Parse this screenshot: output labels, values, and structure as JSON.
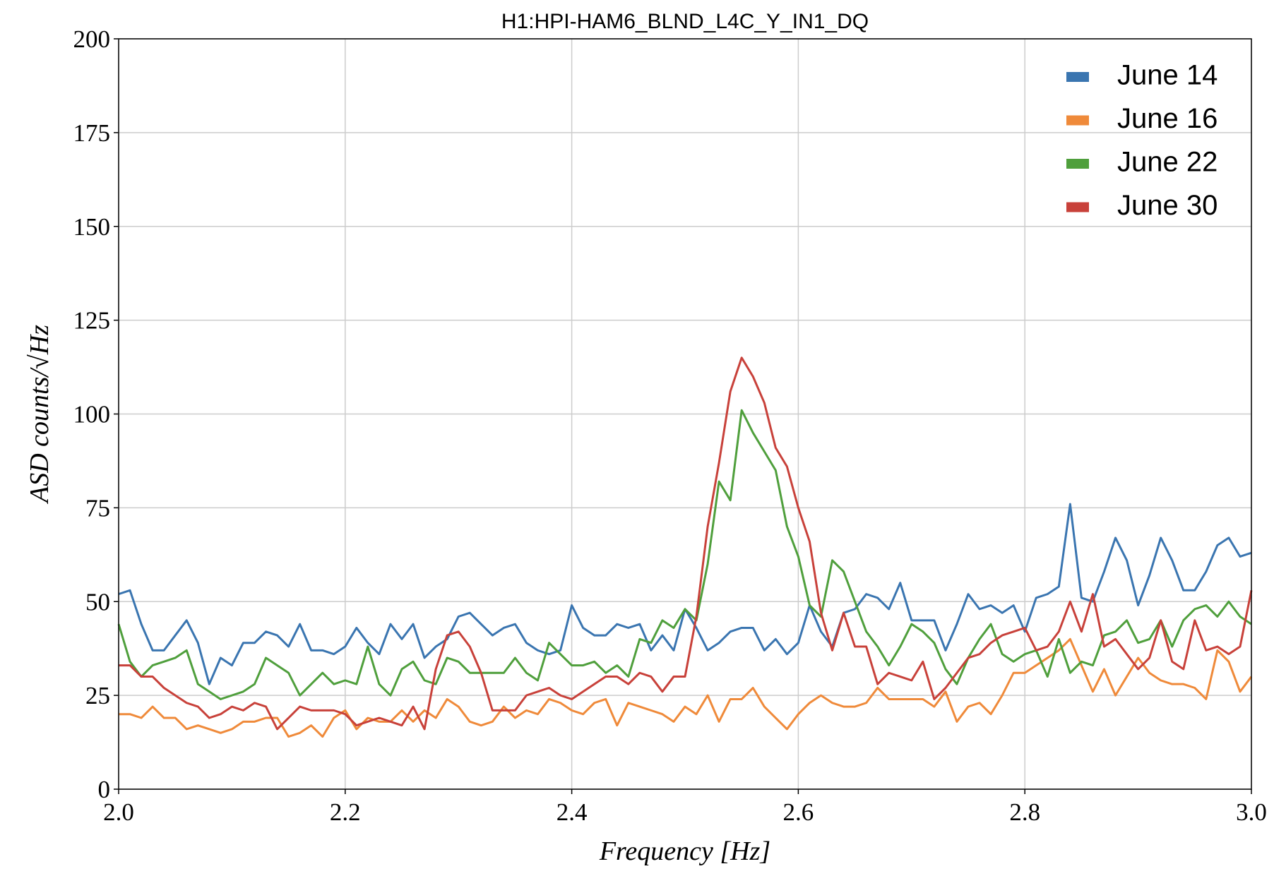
{
  "chart_data": {
    "type": "line",
    "title": "H1:HPI-HAM6_BLND_L4C_Y_IN1_DQ",
    "x_label": "Frequency [Hz]",
    "y_label": "ASD counts/√Hz",
    "x": [
      2.0,
      2.01,
      2.02,
      2.03,
      2.04,
      2.05,
      2.06,
      2.07,
      2.08,
      2.09,
      2.1,
      2.11,
      2.12,
      2.13,
      2.14,
      2.15,
      2.16,
      2.17,
      2.18,
      2.19,
      2.2,
      2.21,
      2.22,
      2.23,
      2.24,
      2.25,
      2.26,
      2.27,
      2.28,
      2.29,
      2.3,
      2.31,
      2.32,
      2.33,
      2.34,
      2.35,
      2.36,
      2.37,
      2.38,
      2.39,
      2.4,
      2.41,
      2.42,
      2.43,
      2.44,
      2.45,
      2.46,
      2.47,
      2.48,
      2.49,
      2.5,
      2.51,
      2.52,
      2.53,
      2.54,
      2.55,
      2.56,
      2.57,
      2.58,
      2.59,
      2.6,
      2.61,
      2.62,
      2.63,
      2.64,
      2.65,
      2.66,
      2.67,
      2.68,
      2.69,
      2.7,
      2.71,
      2.72,
      2.73,
      2.74,
      2.75,
      2.76,
      2.77,
      2.78,
      2.79,
      2.8,
      2.81,
      2.82,
      2.83,
      2.84,
      2.85,
      2.86,
      2.87,
      2.88,
      2.89,
      2.9,
      2.91,
      2.92,
      2.93,
      2.94,
      2.95,
      2.96,
      2.97,
      2.98,
      2.99,
      3.0
    ],
    "series": [
      {
        "name": "June 14",
        "color": "#3a75b0",
        "values": [
          52,
          53,
          44,
          37,
          37,
          41,
          45,
          39,
          28,
          35,
          33,
          39,
          39,
          42,
          41,
          38,
          44,
          37,
          37,
          36,
          38,
          43,
          39,
          36,
          44,
          40,
          44,
          35,
          38,
          40,
          46,
          47,
          44,
          41,
          43,
          44,
          39,
          37,
          36,
          37,
          49,
          43,
          41,
          41,
          44,
          43,
          44,
          37,
          41,
          37,
          48,
          43,
          37,
          39,
          42,
          43,
          43,
          37,
          40,
          36,
          39,
          49,
          42,
          38,
          47,
          48,
          52,
          51,
          48,
          55,
          45,
          45,
          45,
          37,
          44,
          52,
          48,
          49,
          47,
          49,
          42,
          51,
          52,
          54,
          76,
          51,
          50,
          58,
          67,
          61,
          49,
          57,
          67,
          61,
          53,
          53,
          58,
          65,
          67,
          62,
          63
        ]
      },
      {
        "name": "June 16",
        "color": "#ef8a3a",
        "values": [
          20,
          20,
          19,
          22,
          19,
          19,
          16,
          17,
          16,
          15,
          16,
          18,
          18,
          19,
          19,
          14,
          15,
          17,
          14,
          19,
          21,
          16,
          19,
          18,
          18,
          21,
          18,
          21,
          19,
          24,
          22,
          18,
          17,
          18,
          22,
          19,
          21,
          20,
          24,
          23,
          21,
          20,
          23,
          24,
          17,
          23,
          22,
          21,
          20,
          18,
          22,
          20,
          25,
          18,
          24,
          24,
          27,
          22,
          19,
          16,
          20,
          23,
          25,
          23,
          22,
          22,
          23,
          27,
          24,
          24,
          24,
          24,
          22,
          26,
          18,
          22,
          23,
          20,
          25,
          31,
          31,
          33,
          35,
          37,
          40,
          33,
          26,
          32,
          25,
          30,
          35,
          31,
          29,
          28,
          28,
          27,
          24,
          37,
          34,
          26,
          30
        ]
      },
      {
        "name": "June 22",
        "color": "#4f9f3c",
        "values": [
          44,
          34,
          30,
          33,
          34,
          35,
          37,
          28,
          26,
          24,
          25,
          26,
          28,
          35,
          33,
          31,
          25,
          28,
          31,
          28,
          29,
          28,
          38,
          28,
          25,
          32,
          34,
          29,
          28,
          35,
          34,
          31,
          31,
          31,
          31,
          35,
          31,
          29,
          39,
          36,
          33,
          33,
          34,
          31,
          33,
          30,
          40,
          39,
          45,
          43,
          48,
          45,
          60,
          82,
          77,
          101,
          95,
          90,
          85,
          70,
          62,
          49,
          46,
          61,
          58,
          50,
          42,
          38,
          33,
          38,
          44,
          42,
          39,
          32,
          28,
          35,
          40,
          44,
          36,
          34,
          36,
          37,
          30,
          40,
          31,
          34,
          33,
          41,
          42,
          45,
          39,
          40,
          45,
          38,
          45,
          48,
          49,
          46,
          50,
          46,
          44
        ]
      },
      {
        "name": "June 30",
        "color": "#c8413a",
        "values": [
          33,
          33,
          30,
          30,
          27,
          25,
          23,
          22,
          19,
          20,
          22,
          21,
          23,
          22,
          16,
          19,
          22,
          21,
          21,
          21,
          20,
          17,
          18,
          19,
          18,
          17,
          22,
          16,
          32,
          41,
          42,
          38,
          31,
          21,
          21,
          21,
          25,
          26,
          27,
          25,
          24,
          26,
          28,
          30,
          30,
          28,
          31,
          30,
          26,
          30,
          30,
          46,
          70,
          87,
          106,
          115,
          110,
          103,
          91,
          86,
          75,
          66,
          47,
          37,
          47,
          38,
          38,
          28,
          31,
          30,
          29,
          34,
          24,
          27,
          31,
          35,
          36,
          39,
          41,
          42,
          43,
          37,
          38,
          42,
          50,
          42,
          52,
          38,
          40,
          36,
          32,
          35,
          45,
          34,
          32,
          45,
          37,
          38,
          36,
          38,
          53
        ]
      }
    ],
    "xlim": [
      2,
      3
    ],
    "xticks": [
      {
        "value": 2,
        "label": "2.0"
      },
      2.2,
      2.4,
      2.6,
      2.8,
      {
        "value": 3,
        "label": "3.0"
      }
    ],
    "ylim": [
      0,
      200
    ],
    "yticks": [
      0,
      25,
      50,
      75,
      100,
      125,
      150,
      175,
      200
    ],
    "grid": true,
    "legend": "upper-right"
  }
}
